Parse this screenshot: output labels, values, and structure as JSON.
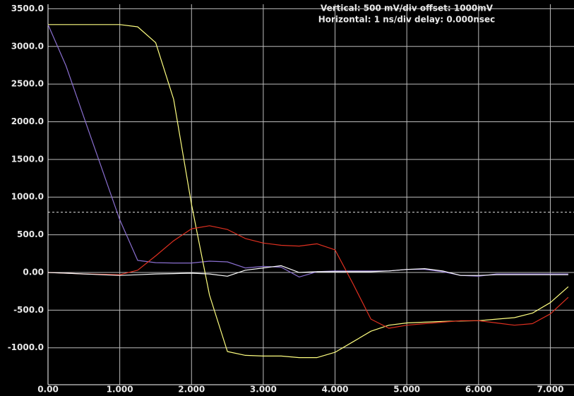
{
  "chart_data": {
    "type": "line",
    "annotations": [
      "Vertical: 500 mV/div  offset:  1000mV",
      "Horizontal: 1 ns/div  delay: 0.000nsec"
    ],
    "x": [
      0,
      0.25,
      0.5,
      0.75,
      1.0,
      1.25,
      1.5,
      1.75,
      2.0,
      2.25,
      2.5,
      2.75,
      3.0,
      3.25,
      3.5,
      3.75,
      4.0,
      4.25,
      4.5,
      4.75,
      5.0,
      5.25,
      5.5,
      5.75,
      6.0,
      6.25,
      6.5,
      6.75,
      7.0,
      7.25
    ],
    "series": [
      {
        "color": "#8a6fd0",
        "values": [
          3290,
          2745,
          2060,
          1380,
          700,
          160,
          130,
          125,
          125,
          150,
          140,
          60,
          80,
          70,
          -60,
          10,
          20,
          20,
          20,
          20,
          40,
          40,
          10,
          -40,
          -50,
          -20,
          -20,
          -20,
          -20,
          -20
        ]
      },
      {
        "color": "#ffff80",
        "values": [
          3290,
          3290,
          3290,
          3290,
          3290,
          3260,
          3050,
          2300,
          900,
          -300,
          -1050,
          -1100,
          -1110,
          -1110,
          -1130,
          -1130,
          -1060,
          -920,
          -780,
          -700,
          -670,
          -660,
          -650,
          -645,
          -640,
          -620,
          -600,
          -540,
          -400,
          -190
        ]
      },
      {
        "color": "#e03020",
        "values": [
          0,
          -10,
          -20,
          -25,
          -30,
          30,
          220,
          420,
          580,
          620,
          570,
          450,
          390,
          360,
          350,
          380,
          300,
          -150,
          -620,
          -740,
          -700,
          -680,
          -660,
          -640,
          -640,
          -670,
          -700,
          -680,
          -550,
          -330
        ]
      },
      {
        "color": "#ffffff",
        "values": [
          0,
          -10,
          -20,
          -30,
          -40,
          -30,
          -20,
          -15,
          -10,
          -20,
          -50,
          30,
          60,
          90,
          0,
          10,
          10,
          10,
          10,
          20,
          40,
          50,
          20,
          -40,
          -40,
          -30,
          -30,
          -30,
          -30,
          -30
        ]
      }
    ],
    "threshold": 800,
    "xlim": [
      0,
      7.33
    ],
    "ylim": [
      -1490,
      3560
    ],
    "xticks": [
      {
        "value": 0,
        "label": "0.00"
      },
      {
        "value": 1,
        "label": "1.000"
      },
      {
        "value": 2,
        "label": "2.000"
      },
      {
        "value": 3,
        "label": "3.000"
      },
      {
        "value": 4,
        "label": "4.000"
      },
      {
        "value": 5,
        "label": "5.000"
      },
      {
        "value": 6,
        "label": "6.000"
      },
      {
        "value": 7,
        "label": "7.000"
      }
    ],
    "yticks": [
      {
        "value": 3500,
        "label": "3500.0"
      },
      {
        "value": 3000,
        "label": "3000.0"
      },
      {
        "value": 2500,
        "label": "2500.0"
      },
      {
        "value": 2000,
        "label": "2000.0"
      },
      {
        "value": 1500,
        "label": "1500.0"
      },
      {
        "value": 1000,
        "label": "1000.0"
      },
      {
        "value": 500,
        "label": "500.0"
      },
      {
        "value": 0,
        "label": "0.00"
      },
      {
        "value": -500,
        "label": "-500.0"
      },
      {
        "value": -1000,
        "label": "-1000.0"
      }
    ],
    "grid": true
  }
}
